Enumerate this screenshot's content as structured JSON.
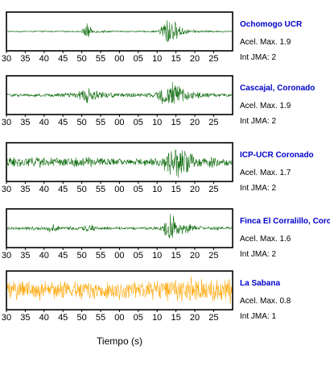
{
  "chart_data": {
    "type": "line",
    "xlabel": "Tiempo (s)",
    "x_tick_labels": [
      "30",
      "35",
      "40",
      "45",
      "50",
      "55",
      "00",
      "05",
      "10",
      "15",
      "20",
      "25"
    ],
    "accel_prefix": "Acel. Max.",
    "int_prefix": "Int JMA:",
    "panels": [
      {
        "station": "Ochomogo UCR",
        "accel_max": "1.9",
        "int_jma": "2",
        "color": "#006400",
        "name_color": "#0000cc",
        "envelope": [
          [
            0,
            0.04
          ],
          [
            0.33,
            0.05
          ],
          [
            0.355,
            0.55
          ],
          [
            0.38,
            0.1
          ],
          [
            0.5,
            0.05
          ],
          [
            0.67,
            0.05
          ],
          [
            0.71,
            1.0
          ],
          [
            0.74,
            0.7
          ],
          [
            0.77,
            0.3
          ],
          [
            0.82,
            0.1
          ],
          [
            1,
            0.04
          ]
        ]
      },
      {
        "station": "Cascajal, Coronado",
        "accel_max": "1.9",
        "int_jma": "2",
        "color": "#006400",
        "name_color": "#0000cc",
        "envelope": [
          [
            0,
            0.1
          ],
          [
            0.2,
            0.12
          ],
          [
            0.3,
            0.18
          ],
          [
            0.36,
            0.55
          ],
          [
            0.41,
            0.2
          ],
          [
            0.55,
            0.12
          ],
          [
            0.66,
            0.15
          ],
          [
            0.72,
            1.0
          ],
          [
            0.76,
            0.6
          ],
          [
            0.8,
            0.3
          ],
          [
            0.88,
            0.15
          ],
          [
            1,
            0.1
          ]
        ]
      },
      {
        "station": "ICP-UCR Coronado",
        "accel_max": "1.7",
        "int_jma": "2",
        "color": "#006400",
        "name_color": "#0000cc",
        "envelope": [
          [
            0,
            0.3
          ],
          [
            0.12,
            0.35
          ],
          [
            0.25,
            0.25
          ],
          [
            0.35,
            0.35
          ],
          [
            0.42,
            0.25
          ],
          [
            0.55,
            0.2
          ],
          [
            0.68,
            0.3
          ],
          [
            0.74,
            1.0
          ],
          [
            0.8,
            0.7
          ],
          [
            0.86,
            0.4
          ],
          [
            1,
            0.25
          ]
        ]
      },
      {
        "station": "Finca El Corralillo, Corona",
        "accel_max": "1.6",
        "int_jma": "2",
        "color": "#006400",
        "name_color": "#0000cc",
        "envelope": [
          [
            0,
            0.1
          ],
          [
            0.17,
            0.12
          ],
          [
            0.2,
            0.35
          ],
          [
            0.24,
            0.12
          ],
          [
            0.34,
            0.12
          ],
          [
            0.36,
            0.3
          ],
          [
            0.4,
            0.12
          ],
          [
            0.55,
            0.08
          ],
          [
            0.68,
            0.12
          ],
          [
            0.73,
            1.0
          ],
          [
            0.77,
            0.4
          ],
          [
            0.85,
            0.15
          ],
          [
            1,
            0.08
          ]
        ]
      },
      {
        "station": "La Sabana",
        "accel_max": "0.8",
        "int_jma": "1",
        "color": "#ffa500",
        "name_color": "#0000cc",
        "envelope": [
          [
            0,
            0.6
          ],
          [
            0.1,
            0.55
          ],
          [
            0.2,
            0.65
          ],
          [
            0.3,
            0.55
          ],
          [
            0.45,
            0.6
          ],
          [
            0.6,
            0.55
          ],
          [
            0.7,
            0.6
          ],
          [
            0.75,
            0.7
          ],
          [
            0.8,
            0.85
          ],
          [
            0.9,
            0.6
          ],
          [
            0.97,
            0.7
          ],
          [
            0.99,
            1.0
          ],
          [
            1,
            0.7
          ]
        ]
      }
    ]
  }
}
